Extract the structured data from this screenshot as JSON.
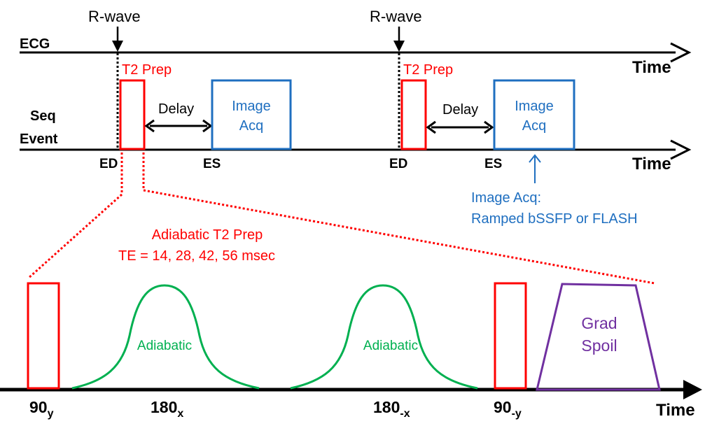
{
  "colors": {
    "axis": "#000000",
    "t2prep": "#ff0000",
    "image_acq": "#1f6fc0",
    "adiabatic": "#00b050",
    "spoiler": "#7030a0"
  },
  "ecg": {
    "label": "ECG",
    "time_label": "Time",
    "rwave_label": "R-wave"
  },
  "seq": {
    "label_line1": "Seq",
    "label_line2": "Event",
    "time_label": "Time",
    "cycles": [
      {
        "t2prep_label": "T2 Prep",
        "delay_label": "Delay",
        "acq_line1": "Image",
        "acq_line2": "Acq",
        "ed_label": "ED",
        "es_label": "ES"
      },
      {
        "t2prep_label": "T2 Prep",
        "delay_label": "Delay",
        "acq_line1": "Image",
        "acq_line2": "Acq",
        "ed_label": "ED",
        "es_label": "ES"
      }
    ],
    "acq_note_line1": "Image Acq:",
    "acq_note_line2": "Ramped bSSFP or FLASH"
  },
  "prep": {
    "title_line1": "Adiabatic T2 Prep",
    "title_line2": "TE = 14, 28, 42, 56 msec",
    "time_label": "Time",
    "pulse1_main": "90",
    "pulse1_sub": "y",
    "pulse2_main": "180",
    "pulse2_sub": "x",
    "pulse2_text": "Adiabatic",
    "pulse3_main": "180",
    "pulse3_sub": "-x",
    "pulse3_text": "Adiabatic",
    "pulse4_main": "90",
    "pulse4_sub": "-y",
    "spoil_line1": "Grad",
    "spoil_line2": "Spoil"
  }
}
